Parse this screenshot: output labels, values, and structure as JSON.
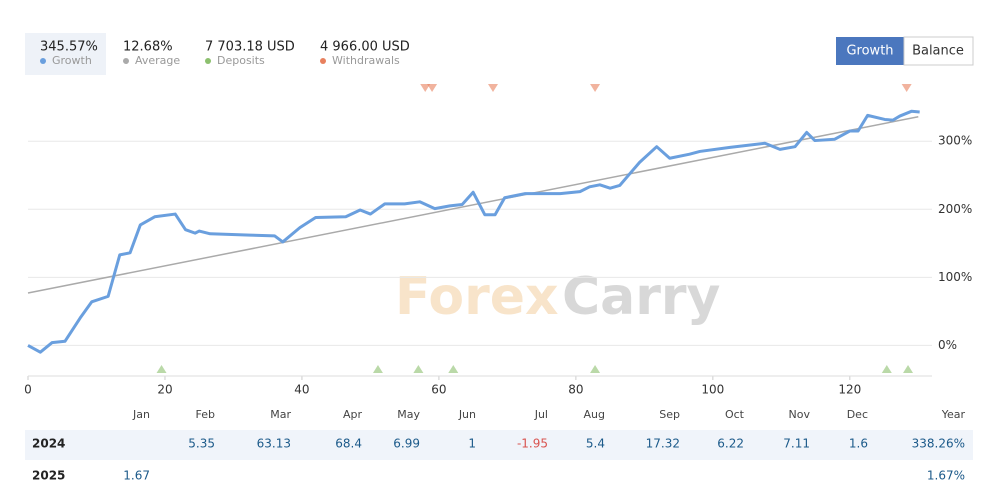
{
  "chart_data": {
    "type": "line",
    "xlim": [
      0,
      132
    ],
    "xticks": [
      0,
      20,
      40,
      60,
      80,
      100,
      120
    ],
    "ylim": [
      -45,
      390
    ],
    "yticks": [
      {
        "value": 0,
        "label": "0%"
      },
      {
        "value": 100,
        "label": "100%"
      },
      {
        "value": 200,
        "label": "200%"
      },
      {
        "value": 300,
        "label": "300%"
      }
    ],
    "grid": true,
    "series": [
      {
        "name": "Growth",
        "color": "#6a9fde",
        "summary": "345.57%",
        "x": [
          0,
          1.8,
          3.5,
          5.4,
          7.6,
          9.3,
          11.7,
          13.4,
          14.9,
          16.4,
          18.5,
          21.5,
          23,
          24.4,
          25,
          26.6,
          32.4,
          36,
          37.2,
          39.7,
          42,
          46.4,
          48.5,
          50,
          52.1,
          55,
          57.2,
          59.4,
          61.6,
          63.4,
          65,
          66.7,
          68.2,
          69.6,
          72.6,
          77.7,
          80.6,
          82,
          83.5,
          85,
          86.4,
          89.3,
          91.8,
          93.7,
          96.6,
          98.1,
          102.5,
          107.6,
          109.8,
          112,
          113.7,
          114.9,
          117.8,
          120,
          121.2,
          122.6,
          125.1,
          126.3,
          127.3,
          129,
          130.2
        ],
        "values": [
          0,
          -10,
          4,
          6,
          40,
          64,
          72,
          133,
          136,
          177,
          189,
          193,
          170,
          165,
          168,
          164,
          162,
          161,
          152,
          173,
          188,
          189,
          199,
          193,
          208,
          208,
          211,
          201,
          205,
          207,
          225,
          192,
          192,
          217,
          223,
          223,
          226,
          233,
          236,
          231,
          235,
          269,
          292,
          275,
          281,
          285,
          291,
          297,
          288,
          292,
          313,
          301,
          303,
          315,
          315,
          338,
          332,
          331,
          337,
          344,
          343
        ]
      },
      {
        "name": "Average",
        "color": "#aaaaaa",
        "summary": "12.68%",
        "x": [
          0,
          130
        ],
        "values": [
          77,
          336
        ]
      }
    ],
    "markers": [
      {
        "name": "Deposits",
        "color": "#8cc06e",
        "summary": "7 703.18 USD",
        "x": [
          19.5,
          51.1,
          57,
          62.1,
          82.8,
          125.4,
          128.5
        ]
      },
      {
        "name": "Withdrawals",
        "color": "#e8805e",
        "summary": "4 966.00 USD",
        "x": [
          58,
          59,
          67.9,
          82.8,
          128.3
        ]
      }
    ],
    "watermark": [
      "Forex",
      "Carry"
    ]
  },
  "buttons": [
    "Growth",
    "Balance"
  ],
  "table": {
    "columns": [
      "Jan",
      "Feb",
      "Mar",
      "Apr",
      "May",
      "Jun",
      "Jul",
      "Aug",
      "Sep",
      "Oct",
      "Nov",
      "Dec",
      "Year"
    ],
    "rows": [
      {
        "year": "2024",
        "cells": [
          null,
          "5.35",
          "63.13",
          "68.4",
          "6.99",
          "1",
          "-1.95",
          "5.4",
          "17.32",
          "6.22",
          "7.11",
          "1.6",
          "338.26%"
        ]
      },
      {
        "year": "2025",
        "cells": [
          "1.67",
          null,
          null,
          null,
          null,
          null,
          null,
          null,
          null,
          null,
          null,
          null,
          "1.67%"
        ]
      }
    ]
  }
}
